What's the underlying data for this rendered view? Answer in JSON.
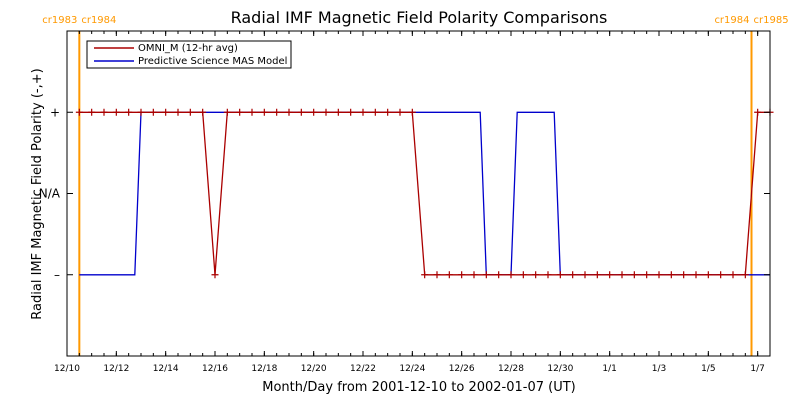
{
  "chart_data": {
    "type": "line",
    "title": "Radial IMF Magnetic Field Polarity Comparisons",
    "xlabel": "Month/Day from 2001-12-10 to 2002-01-07 (UT)",
    "ylabel": "Radial IMF Magnetic Field Polarity (-,+)",
    "xlim": [
      "2001-12-10 00:00",
      "2002-01-07 12:00"
    ],
    "ylim": [
      -2,
      2
    ],
    "x_ticks": [
      {
        "label": "12/10",
        "date": "2001-12-10"
      },
      {
        "label": "12/12",
        "date": "2001-12-12"
      },
      {
        "label": "12/14",
        "date": "2001-12-14"
      },
      {
        "label": "12/16",
        "date": "2001-12-16"
      },
      {
        "label": "12/18",
        "date": "2001-12-18"
      },
      {
        "label": "12/20",
        "date": "2001-12-20"
      },
      {
        "label": "12/22",
        "date": "2001-12-22"
      },
      {
        "label": "12/24",
        "date": "2001-12-24"
      },
      {
        "label": "12/26",
        "date": "2001-12-26"
      },
      {
        "label": "12/28",
        "date": "2001-12-28"
      },
      {
        "label": "12/30",
        "date": "2001-12-30"
      },
      {
        "label": "1/1",
        "date": "2002-01-01"
      },
      {
        "label": "1/3",
        "date": "2002-01-03"
      },
      {
        "label": "1/5",
        "date": "2002-01-05"
      },
      {
        "label": "1/7",
        "date": "2002-01-07"
      }
    ],
    "y_ticks": [
      {
        "label": "+",
        "value": 1
      },
      {
        "label": "N/A",
        "value": 0
      },
      {
        "label": "–",
        "value": -1
      }
    ],
    "carrington_markers": [
      {
        "date": "2001-12-10 12:00",
        "left_label": "cr1983",
        "right_label": "cr1984"
      },
      {
        "date": "2002-01-06 18:00",
        "left_label": "cr1984",
        "right_label": "cr1985"
      }
    ],
    "series": [
      {
        "name": "OMNI_M (12-hr avg)",
        "color": "#aa0000",
        "marker": "plus",
        "points": [
          [
            "2001-12-10 12:00",
            1
          ],
          [
            "2001-12-11 00:00",
            1
          ],
          [
            "2001-12-11 12:00",
            1
          ],
          [
            "2001-12-12 00:00",
            1
          ],
          [
            "2001-12-12 12:00",
            1
          ],
          [
            "2001-12-13 00:00",
            1
          ],
          [
            "2001-12-13 12:00",
            1
          ],
          [
            "2001-12-14 00:00",
            1
          ],
          [
            "2001-12-14 12:00",
            1
          ],
          [
            "2001-12-15 00:00",
            1
          ],
          [
            "2001-12-15 12:00",
            1
          ],
          [
            "2001-12-16 00:00",
            -1
          ],
          [
            "2001-12-16 12:00",
            1
          ],
          [
            "2001-12-17 00:00",
            1
          ],
          [
            "2001-12-17 12:00",
            1
          ],
          [
            "2001-12-18 00:00",
            1
          ],
          [
            "2001-12-18 12:00",
            1
          ],
          [
            "2001-12-19 00:00",
            1
          ],
          [
            "2001-12-19 12:00",
            1
          ],
          [
            "2001-12-20 00:00",
            1
          ],
          [
            "2001-12-20 12:00",
            1
          ],
          [
            "2001-12-21 00:00",
            1
          ],
          [
            "2001-12-21 12:00",
            1
          ],
          [
            "2001-12-22 00:00",
            1
          ],
          [
            "2001-12-22 12:00",
            1
          ],
          [
            "2001-12-23 00:00",
            1
          ],
          [
            "2001-12-23 12:00",
            1
          ],
          [
            "2001-12-24 00:00",
            1
          ],
          [
            "2001-12-24 12:00",
            -1
          ],
          [
            "2001-12-25 00:00",
            -1
          ],
          [
            "2001-12-25 12:00",
            -1
          ],
          [
            "2001-12-26 00:00",
            -1
          ],
          [
            "2001-12-26 12:00",
            -1
          ],
          [
            "2001-12-27 00:00",
            -1
          ],
          [
            "2001-12-27 12:00",
            -1
          ],
          [
            "2001-12-28 00:00",
            -1
          ],
          [
            "2001-12-28 12:00",
            -1
          ],
          [
            "2001-12-29 00:00",
            -1
          ],
          [
            "2001-12-29 12:00",
            -1
          ],
          [
            "2001-12-30 00:00",
            -1
          ],
          [
            "2001-12-30 12:00",
            -1
          ],
          [
            "2001-12-31 00:00",
            -1
          ],
          [
            "2001-12-31 12:00",
            -1
          ],
          [
            "2002-01-01 00:00",
            -1
          ],
          [
            "2002-01-01 12:00",
            -1
          ],
          [
            "2002-01-02 00:00",
            -1
          ],
          [
            "2002-01-02 12:00",
            -1
          ],
          [
            "2002-01-03 00:00",
            -1
          ],
          [
            "2002-01-03 12:00",
            -1
          ],
          [
            "2002-01-04 00:00",
            -1
          ],
          [
            "2002-01-04 12:00",
            -1
          ],
          [
            "2002-01-05 00:00",
            -1
          ],
          [
            "2002-01-05 12:00",
            -1
          ],
          [
            "2002-01-06 00:00",
            -1
          ],
          [
            "2002-01-06 12:00",
            -1
          ],
          [
            "2002-01-07 00:00",
            1
          ],
          [
            "2002-01-07 12:00",
            1
          ]
        ]
      },
      {
        "name": "Predictive Science MAS Model",
        "color": "#0000cc",
        "marker": "none",
        "points": [
          [
            "2001-12-10 12:00",
            -1
          ],
          [
            "2001-12-12 18:00",
            -1
          ],
          [
            "2001-12-13 00:00",
            1
          ],
          [
            "2001-12-26 18:00",
            1
          ],
          [
            "2001-12-27 00:00",
            -1
          ],
          [
            "2001-12-28 00:00",
            -1
          ],
          [
            "2001-12-28 06:00",
            1
          ],
          [
            "2001-12-29 18:00",
            1
          ],
          [
            "2001-12-30 00:00",
            -1
          ],
          [
            "2002-01-07 12:00",
            -1
          ]
        ]
      }
    ],
    "legend_placement": "top-left",
    "grid": false
  }
}
